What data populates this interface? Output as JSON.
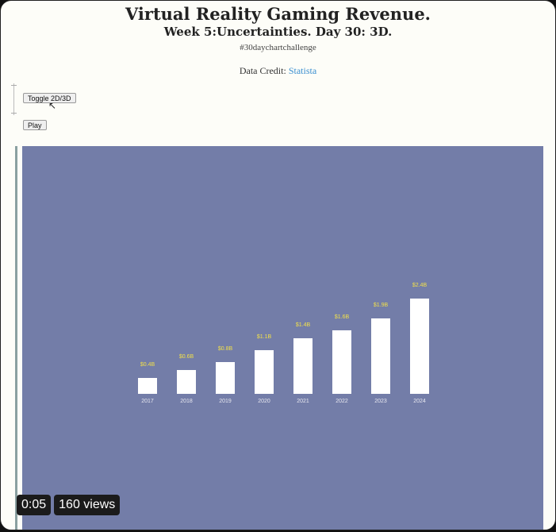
{
  "header": {
    "title": "Virtual Reality Gaming Revenue.",
    "subtitle": "Week 5:Uncertainties. Day 30: 3D.",
    "hashtag": "#30daychartchallenge",
    "credit_label": "Data Credit:",
    "credit_source": "Statista"
  },
  "controls": {
    "toggle_label": "Toggle 2D/3D",
    "play_label": "Play"
  },
  "video": {
    "time": "0:05",
    "views": "160 views"
  },
  "colors": {
    "panel_bg": "#737da8",
    "bar": "#ffffff",
    "value_label": "#f2e04a",
    "tick_label": "#e8e8f0"
  },
  "chart_data": {
    "type": "bar",
    "categories": [
      "2017",
      "2018",
      "2019",
      "2020",
      "2021",
      "2022",
      "2023",
      "2024"
    ],
    "values": [
      0.4,
      0.6,
      0.8,
      1.1,
      1.4,
      1.6,
      1.9,
      2.4
    ],
    "value_labels": [
      "$0.4B",
      "$0.6B",
      "$0.8B",
      "$1.1B",
      "$1.4B",
      "$1.6B",
      "$1.9B",
      "$2.4B"
    ],
    "ylim": [
      0,
      2.4
    ]
  }
}
